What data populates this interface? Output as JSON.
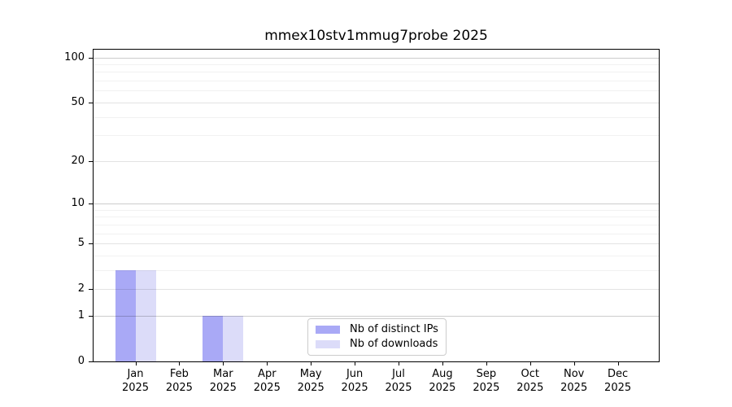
{
  "title": "mmex10stv1mmug7probe 2025",
  "chart_data": {
    "type": "bar",
    "title": "mmex10stv1mmug7probe 2025",
    "categories": [
      "Jan 2025",
      "Feb 2025",
      "Mar 2025",
      "Apr 2025",
      "May 2025",
      "Jun 2025",
      "Jul 2025",
      "Aug 2025",
      "Sep 2025",
      "Oct 2025",
      "Nov 2025",
      "Dec 2025"
    ],
    "month_labels": [
      "Jan",
      "Feb",
      "Mar",
      "Apr",
      "May",
      "Jun",
      "Jul",
      "Aug",
      "Sep",
      "Oct",
      "Nov",
      "Dec"
    ],
    "year_label": "2025",
    "series": [
      {
        "name": "Nb of distinct IPs",
        "color": "#a9a9f6",
        "values": [
          3,
          0,
          1,
          0,
          0,
          0,
          0,
          0,
          0,
          0,
          0,
          0
        ]
      },
      {
        "name": "Nb of downloads",
        "color": "#dcdcf9",
        "values": [
          3,
          0,
          1,
          0,
          0,
          0,
          0,
          0,
          0,
          0,
          0,
          0
        ]
      }
    ],
    "yscale": "log1p",
    "ylim": [
      0,
      114
    ],
    "y_major_ticks": [
      0,
      1,
      2,
      5,
      10,
      20,
      50,
      100
    ],
    "y_decade_gridlines": [
      1,
      10,
      100
    ],
    "y_minor_gridlines": [
      3,
      4,
      6,
      7,
      8,
      9,
      30,
      40,
      60,
      70,
      80,
      90
    ],
    "grid": "horizontal",
    "legend_position": "lower center",
    "xlabel": "",
    "ylabel": ""
  },
  "colors": {
    "bar_distinct_ips": "#a9a9f6",
    "bar_downloads": "#dcdcf9",
    "grid_decade": "#cccccc",
    "grid_major": "#e3e3e3",
    "grid_minor": "#f1f1f1",
    "spine": "#000000",
    "text": "#000000",
    "legend_border": "#cccccc",
    "background": "#ffffff"
  }
}
